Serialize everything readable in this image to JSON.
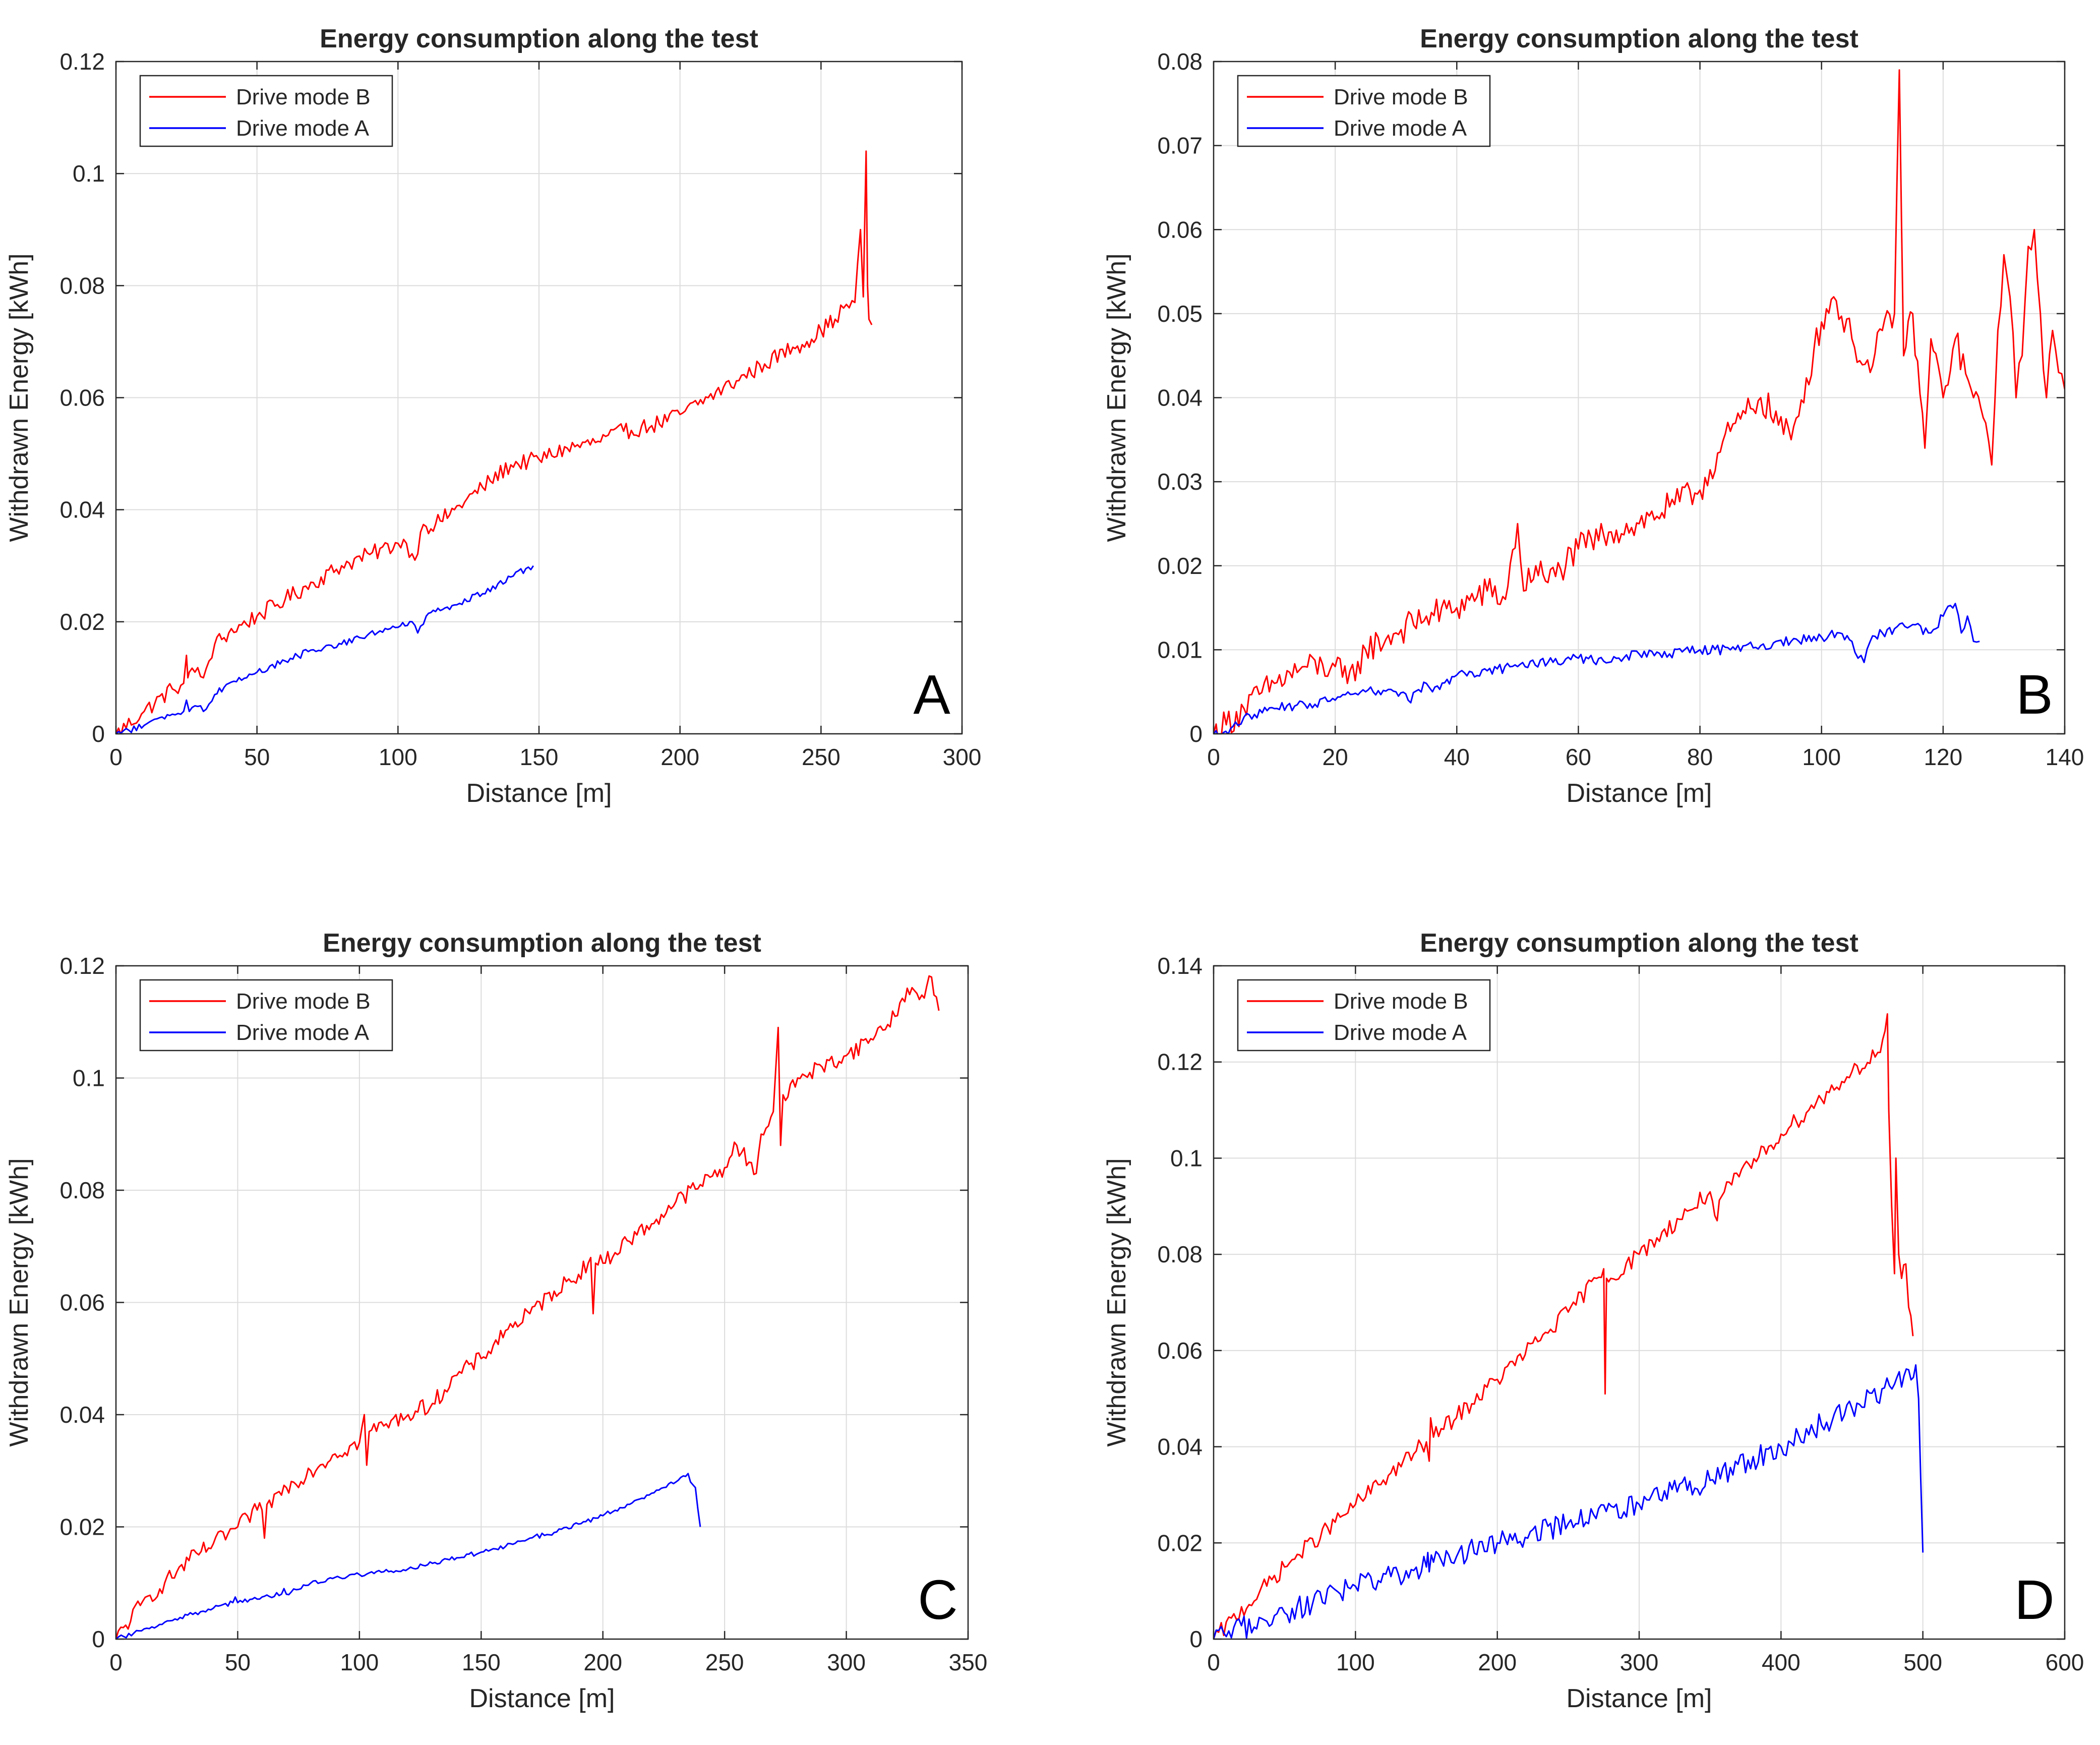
{
  "chart_data": [
    {
      "id": "A",
      "type": "line",
      "title": "Energy consumption along the test",
      "xlabel": "Distance [m]",
      "ylabel": "Withdrawn Energy [kWh]",
      "xlim": [
        0,
        300
      ],
      "ylim": [
        0,
        0.12
      ],
      "xticks": [
        0,
        50,
        100,
        150,
        200,
        250,
        300
      ],
      "yticks": [
        0,
        0.02,
        0.04,
        0.06,
        0.08,
        0.1,
        0.12
      ],
      "xtick_labels": [
        "0",
        "50",
        "100",
        "150",
        "200",
        "250",
        "300"
      ],
      "ytick_labels": [
        "0",
        "0.02",
        "0.04",
        "0.06",
        "0.08",
        "0.1",
        "0.12"
      ],
      "grid": true,
      "legend_position": "top-left",
      "panel_label": "A",
      "series": [
        {
          "name": "Drive mode B",
          "color": "#ff0000",
          "x": [
            0,
            10,
            20,
            24,
            25,
            25.5,
            26,
            28,
            31,
            33,
            35,
            40,
            50,
            60,
            70,
            80,
            90,
            100,
            103,
            106,
            108,
            110,
            115,
            120,
            130,
            140,
            150,
            160,
            170,
            180,
            190,
            200,
            210,
            220,
            230,
            240,
            245,
            250,
            255,
            258,
            262,
            264,
            265,
            266,
            266.5,
            267,
            268
          ],
          "y": [
            0,
            0.004,
            0.008,
            0.009,
            0.014,
            0.01,
            0.011,
            0.011,
            0.01,
            0.013,
            0.016,
            0.018,
            0.021,
            0.024,
            0.027,
            0.03,
            0.032,
            0.034,
            0.034,
            0.031,
            0.036,
            0.037,
            0.038,
            0.04,
            0.044,
            0.048,
            0.049,
            0.051,
            0.052,
            0.054,
            0.055,
            0.057,
            0.06,
            0.063,
            0.066,
            0.069,
            0.07,
            0.072,
            0.074,
            0.076,
            0.077,
            0.09,
            0.078,
            0.104,
            0.08,
            0.074,
            0.073
          ],
          "noise": 0.0015
        },
        {
          "name": "Drive mode A",
          "color": "#0000ff",
          "x": [
            0,
            10,
            20,
            24,
            25,
            26,
            28,
            30,
            31,
            35,
            40,
            50,
            60,
            70,
            80,
            90,
            100,
            105,
            107,
            110,
            115,
            120,
            130,
            140,
            148
          ],
          "y": [
            0,
            0.0015,
            0.0035,
            0.004,
            0.006,
            0.004,
            0.005,
            0.005,
            0.004,
            0.007,
            0.009,
            0.011,
            0.013,
            0.015,
            0.016,
            0.018,
            0.019,
            0.02,
            0.018,
            0.021,
            0.022,
            0.023,
            0.025,
            0.028,
            0.03
          ],
          "noise": 0.0006
        }
      ]
    },
    {
      "id": "B",
      "type": "line",
      "title": "Energy consumption along the test",
      "xlabel": "Distance [m]",
      "ylabel": "Withdrawn Energy [kWh]",
      "xlim": [
        0,
        140
      ],
      "ylim": [
        0,
        0.08
      ],
      "xticks": [
        0,
        20,
        40,
        60,
        80,
        100,
        120,
        140
      ],
      "yticks": [
        0,
        0.01,
        0.02,
        0.03,
        0.04,
        0.05,
        0.06,
        0.07,
        0.08
      ],
      "xtick_labels": [
        "0",
        "20",
        "40",
        "60",
        "80",
        "100",
        "120",
        "140"
      ],
      "ytick_labels": [
        "0",
        "0.01",
        "0.02",
        "0.03",
        "0.04",
        "0.05",
        "0.06",
        "0.07",
        "0.08"
      ],
      "grid": true,
      "legend_position": "top-left",
      "panel_label": "B",
      "series": [
        {
          "name": "Drive mode B",
          "color": "#ff0000",
          "x": [
            0,
            5,
            10,
            15,
            20,
            22,
            25,
            30,
            35,
            40,
            45,
            48,
            50,
            51,
            53,
            55,
            60,
            65,
            70,
            75,
            80,
            85,
            90,
            95,
            100,
            102,
            105,
            108,
            110,
            112,
            112.8,
            113.5,
            115,
            117,
            118,
            120,
            122,
            125,
            127,
            128,
            129,
            130,
            131,
            132,
            133,
            134,
            135,
            136,
            137,
            138,
            139,
            140
          ],
          "y": [
            0,
            0.003,
            0.006,
            0.008,
            0.008,
            0.006,
            0.01,
            0.012,
            0.014,
            0.015,
            0.017,
            0.016,
            0.025,
            0.017,
            0.02,
            0.018,
            0.022,
            0.024,
            0.025,
            0.027,
            0.029,
            0.036,
            0.04,
            0.035,
            0.049,
            0.052,
            0.047,
            0.043,
            0.048,
            0.05,
            0.079,
            0.045,
            0.05,
            0.034,
            0.047,
            0.04,
            0.047,
            0.04,
            0.037,
            0.032,
            0.048,
            0.057,
            0.052,
            0.04,
            0.045,
            0.058,
            0.06,
            0.05,
            0.04,
            0.048,
            0.043,
            0.041
          ],
          "noise": 0.0018
        },
        {
          "name": "Drive mode A",
          "color": "#0000ff",
          "x": [
            0,
            2,
            4,
            5,
            8,
            10,
            15,
            20,
            25,
            30,
            32,
            35,
            36,
            40,
            45,
            50,
            55,
            60,
            65,
            70,
            75,
            80,
            85,
            90,
            95,
            100,
            103,
            105,
            106,
            107,
            108,
            110,
            112,
            115,
            118,
            120,
            122,
            123,
            124,
            125,
            126
          ],
          "y": [
            0,
            0.0003,
            0.001,
            0.002,
            0.0025,
            0.003,
            0.0035,
            0.004,
            0.005,
            0.005,
            0.004,
            0.006,
            0.005,
            0.007,
            0.0075,
            0.008,
            0.0085,
            0.009,
            0.0085,
            0.0095,
            0.0095,
            0.01,
            0.01,
            0.0105,
            0.011,
            0.0115,
            0.012,
            0.011,
            0.009,
            0.0085,
            0.011,
            0.012,
            0.0125,
            0.013,
            0.012,
            0.014,
            0.0155,
            0.012,
            0.014,
            0.011,
            0.011
          ],
          "noise": 0.0006
        }
      ]
    },
    {
      "id": "C",
      "type": "line",
      "title": "Energy consumption along the test",
      "xlabel": "Distance [m]",
      "ylabel": "Withdrawn Energy [kWh]",
      "xlim": [
        0,
        350
      ],
      "ylim": [
        0,
        0.12
      ],
      "xticks": [
        0,
        50,
        100,
        150,
        200,
        250,
        300,
        350
      ],
      "yticks": [
        0,
        0.02,
        0.04,
        0.06,
        0.08,
        0.1,
        0.12
      ],
      "xtick_labels": [
        "0",
        "50",
        "100",
        "150",
        "200",
        "250",
        "300",
        "350"
      ],
      "ytick_labels": [
        "0",
        "0.02",
        "0.04",
        "0.06",
        "0.08",
        "0.1",
        "0.12"
      ],
      "grid": true,
      "legend_position": "top-left",
      "panel_label": "C",
      "series": [
        {
          "name": "Drive mode B",
          "color": "#ff0000",
          "x": [
            0,
            10,
            20,
            30,
            40,
            50,
            58,
            60,
            61,
            62,
            70,
            80,
            90,
            100,
            102,
            103,
            104,
            110,
            120,
            130,
            140,
            150,
            160,
            170,
            180,
            190,
            195,
            196,
            197,
            200,
            210,
            220,
            230,
            240,
            250,
            255,
            260,
            263,
            265,
            270,
            272,
            273,
            274,
            275,
            280,
            290,
            300,
            310,
            320,
            325,
            330,
            335,
            338
          ],
          "y": [
            0,
            0.006,
            0.01,
            0.014,
            0.017,
            0.02,
            0.023,
            0.023,
            0.018,
            0.024,
            0.027,
            0.03,
            0.033,
            0.035,
            0.04,
            0.031,
            0.037,
            0.038,
            0.04,
            0.042,
            0.047,
            0.05,
            0.055,
            0.058,
            0.062,
            0.065,
            0.068,
            0.058,
            0.067,
            0.067,
            0.071,
            0.074,
            0.078,
            0.081,
            0.084,
            0.088,
            0.085,
            0.083,
            0.09,
            0.094,
            0.109,
            0.088,
            0.097,
            0.096,
            0.1,
            0.102,
            0.104,
            0.107,
            0.111,
            0.116,
            0.114,
            0.118,
            0.112
          ],
          "noise": 0.0015
        },
        {
          "name": "Drive mode A",
          "color": "#0000ff",
          "x": [
            0,
            20,
            40,
            48,
            49,
            50,
            60,
            68,
            69,
            70,
            80,
            90,
            100,
            110,
            120,
            130,
            140,
            150,
            160,
            170,
            180,
            190,
            200,
            210,
            220,
            225,
            230,
            234,
            235,
            236,
            238,
            240
          ],
          "y": [
            0,
            0.003,
            0.0055,
            0.0065,
            0.0075,
            0.0065,
            0.0075,
            0.008,
            0.009,
            0.008,
            0.01,
            0.011,
            0.0115,
            0.012,
            0.0125,
            0.0135,
            0.0145,
            0.0155,
            0.0165,
            0.018,
            0.019,
            0.0205,
            0.022,
            0.024,
            0.026,
            0.027,
            0.028,
            0.029,
            0.0295,
            0.028,
            0.027,
            0.02
          ],
          "noise": 0.0004
        }
      ]
    },
    {
      "id": "D",
      "type": "line",
      "title": "Energy consumption along the test",
      "xlabel": "Distance [m]",
      "ylabel": "Withdrawn Energy [kWh]",
      "xlim": [
        0,
        600
      ],
      "ylim": [
        0,
        0.14
      ],
      "xticks": [
        0,
        100,
        200,
        300,
        400,
        500,
        600
      ],
      "yticks": [
        0,
        0.02,
        0.04,
        0.06,
        0.08,
        0.1,
        0.12,
        0.14
      ],
      "xtick_labels": [
        "0",
        "100",
        "200",
        "300",
        "400",
        "500",
        "600"
      ],
      "ytick_labels": [
        "0",
        "0.02",
        "0.04",
        "0.06",
        "0.08",
        "0.1",
        "0.12",
        "0.14"
      ],
      "grid": true,
      "legend_position": "top-left",
      "panel_label": "D",
      "series": [
        {
          "name": "Drive mode B",
          "color": "#ff0000",
          "x": [
            0,
            50,
            100,
            150,
            152,
            153,
            155,
            200,
            250,
            270,
            275,
            276,
            277,
            280,
            300,
            350,
            355,
            358,
            360,
            400,
            450,
            470,
            475,
            476,
            478,
            480,
            481,
            483,
            485,
            488,
            490,
            493
          ],
          "y": [
            0,
            0.015,
            0.028,
            0.041,
            0.037,
            0.046,
            0.042,
            0.054,
            0.068,
            0.075,
            0.077,
            0.051,
            0.075,
            0.075,
            0.08,
            0.093,
            0.087,
            0.092,
            0.093,
            0.105,
            0.118,
            0.122,
            0.13,
            0.11,
            0.09,
            0.076,
            0.1,
            0.08,
            0.075,
            0.078,
            0.069,
            0.063
          ],
          "noise": 0.0018
        },
        {
          "name": "Drive mode A",
          "color": "#0000ff",
          "x": [
            0,
            50,
            100,
            150,
            151,
            152,
            155,
            200,
            250,
            300,
            350,
            400,
            450,
            480,
            490,
            495,
            497,
            500
          ],
          "y": [
            0,
            0.0055,
            0.011,
            0.015,
            0.018,
            0.014,
            0.016,
            0.02,
            0.024,
            0.028,
            0.033,
            0.04,
            0.048,
            0.053,
            0.056,
            0.057,
            0.05,
            0.018
          ],
          "noise": 0.0025
        }
      ]
    }
  ]
}
